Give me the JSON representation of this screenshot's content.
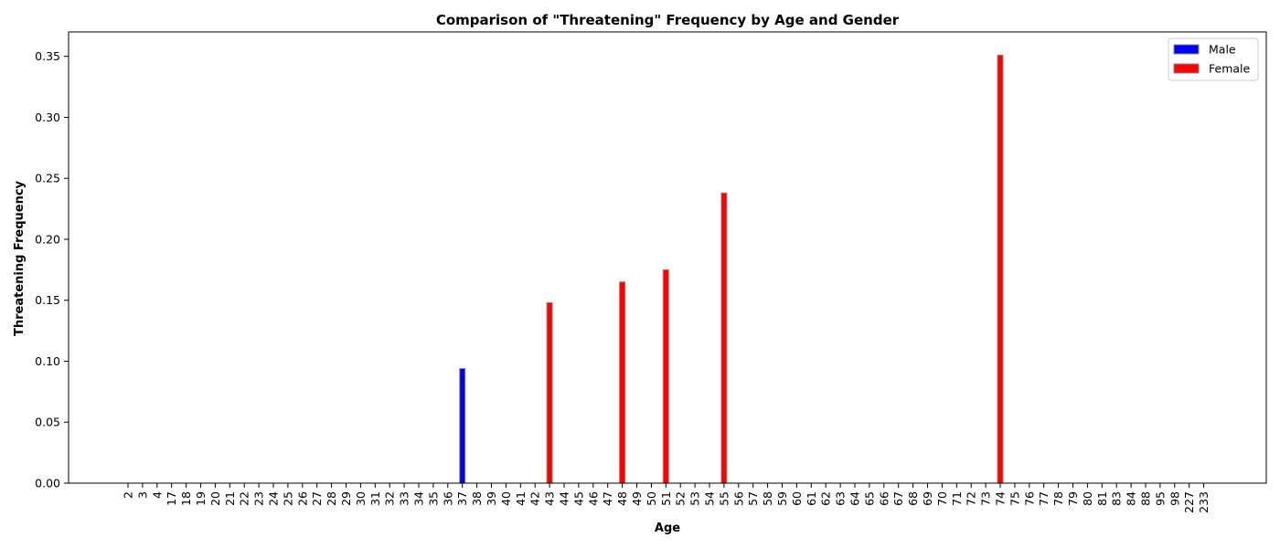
{
  "chart_data": {
    "type": "bar",
    "title": "Comparison of \"Threatening\" Frequency by Age and Gender",
    "xlabel": "Age",
    "ylabel": "Threatening Frequency",
    "ylim": [
      0,
      0.37
    ],
    "yticks": [
      "0.00",
      "0.05",
      "0.10",
      "0.15",
      "0.20",
      "0.25",
      "0.30",
      "0.35"
    ],
    "grid": false,
    "legend_position": "top-right",
    "categories": [
      "2",
      "3",
      "4",
      "17",
      "18",
      "19",
      "20",
      "21",
      "22",
      "23",
      "24",
      "25",
      "26",
      "27",
      "28",
      "29",
      "30",
      "31",
      "32",
      "33",
      "34",
      "35",
      "36",
      "37",
      "38",
      "39",
      "40",
      "41",
      "42",
      "43",
      "44",
      "45",
      "46",
      "47",
      "48",
      "49",
      "50",
      "51",
      "52",
      "53",
      "54",
      "55",
      "56",
      "57",
      "58",
      "59",
      "60",
      "61",
      "62",
      "63",
      "64",
      "65",
      "66",
      "67",
      "68",
      "69",
      "70",
      "71",
      "72",
      "73",
      "74",
      "75",
      "76",
      "77",
      "78",
      "79",
      "80",
      "81",
      "83",
      "84",
      "88",
      "95",
      "98",
      "227",
      "233"
    ],
    "series": [
      {
        "name": "Male",
        "color": "#0000ff",
        "points": [
          {
            "category": "37",
            "value": 0.094
          }
        ]
      },
      {
        "name": "Female",
        "color": "#ff0000",
        "points": [
          {
            "category": "43",
            "value": 0.148
          },
          {
            "category": "48",
            "value": 0.165
          },
          {
            "category": "51",
            "value": 0.175
          },
          {
            "category": "55",
            "value": 0.238
          },
          {
            "category": "74",
            "value": 0.351
          }
        ]
      }
    ]
  }
}
